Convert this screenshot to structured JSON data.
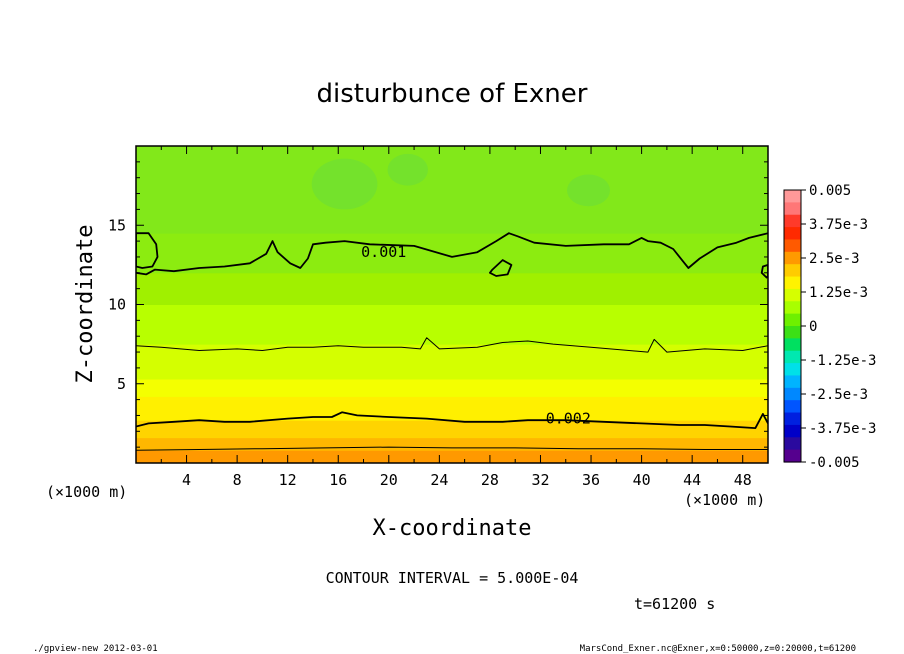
{
  "chart_data": {
    "type": "contour",
    "title": "disturbunce of Exner",
    "xlabel": "X-coordinate",
    "ylabel": "Z-coordinate",
    "x_unit": "(×1000 m)",
    "z_unit": "(×1000 m)",
    "xlim": [
      0,
      50
    ],
    "ylim": [
      0,
      20
    ],
    "x_ticks": [
      "4",
      "8",
      "12",
      "16",
      "20",
      "24",
      "28",
      "32",
      "36",
      "40",
      "44",
      "48"
    ],
    "y_ticks": [
      "5",
      "10",
      "15"
    ],
    "contour_interval_text": "CONTOUR INTERVAL = 5.000E-04",
    "time_text": "t=61200 s",
    "footer_left": "./gpview-new  2012-03-01",
    "footer_right": "MarsCond_Exner.nc@Exner,x=0:50000,z=0:20000,t=61200",
    "colorbar": {
      "labels": [
        "0.005",
        "3.75e-3",
        "2.5e-3",
        "1.25e-3",
        "0",
        "-1.25e-3",
        "-2.5e-3",
        "-3.75e-3",
        "-0.005"
      ],
      "colors": [
        "#ff9999",
        "#ff7777",
        "#ff3a2a",
        "#ff2a00",
        "#ff5a00",
        "#ff9a00",
        "#ffcc00",
        "#fff300",
        "#d6ff00",
        "#a8ff00",
        "#6ef000",
        "#3ce016",
        "#00e060",
        "#00e8b0",
        "#00e0e8",
        "#00b4ff",
        "#0088ff",
        "#0055ff",
        "#0020e0",
        "#0000c8",
        "#2a0a9e",
        "#55008e"
      ]
    },
    "bands": [
      {
        "z": [
          0,
          0.8
        ],
        "value": 0.0025,
        "color": "#ff9900"
      },
      {
        "z": [
          0.8,
          1.6
        ],
        "value": 0.00225,
        "color": "#ffb700"
      },
      {
        "z": [
          1.6,
          2.7
        ],
        "value": 0.002,
        "color": "#ffd400"
      },
      {
        "z": [
          2.7,
          4.2
        ],
        "value": 0.00175,
        "color": "#fff000"
      },
      {
        "z": [
          4.2,
          5.3
        ],
        "value": 0.0015,
        "color": "#f4ff00"
      },
      {
        "z": [
          5.3,
          7.5
        ],
        "value": 0.00138,
        "color": "#d4ff00"
      },
      {
        "z": [
          7.5,
          10.0
        ],
        "value": 0.00125,
        "color": "#b8ff00"
      },
      {
        "z": [
          10.0,
          12.0
        ],
        "value": 0.0011,
        "color": "#a0f000"
      },
      {
        "z": [
          12.0,
          14.5
        ],
        "value": 0.001,
        "color": "#8cec10"
      },
      {
        "z": [
          14.5,
          20.0
        ],
        "value": 0.0009,
        "color": "#82e81a"
      }
    ],
    "cells": [
      {
        "x": 16.5,
        "z": 17.6,
        "rx": 2.6,
        "rz": 1.6
      },
      {
        "x": 21.5,
        "z": 18.5,
        "rx": 1.6,
        "rz": 1.0
      },
      {
        "x": 35.8,
        "z": 17.2,
        "rx": 1.7,
        "rz": 1.0
      }
    ],
    "contours": [
      {
        "label": "0.001",
        "label_x": 19.6,
        "label_z": 13.3,
        "weight": "bold",
        "x": [
          0,
          0.8,
          1.5,
          3,
          5,
          7,
          9,
          10.3,
          10.8,
          11.2,
          12.2,
          13.0,
          13.6,
          14,
          15,
          16.5,
          18.5,
          22,
          25,
          27,
          28.5,
          29.5,
          30.2,
          31.5,
          34,
          37,
          39,
          40,
          40.5,
          41.5,
          42.5,
          43.3,
          43.7,
          44.6,
          46,
          47.5,
          48.5,
          50
        ],
        "z": [
          12.0,
          11.9,
          12.2,
          12.1,
          12.3,
          12.4,
          12.6,
          13.2,
          14.0,
          13.3,
          12.6,
          12.3,
          12.9,
          13.8,
          13.9,
          14.0,
          13.8,
          13.7,
          13.0,
          13.3,
          14.0,
          14.5,
          14.3,
          13.9,
          13.7,
          13.8,
          13.8,
          14.2,
          14.0,
          13.9,
          13.5,
          12.7,
          12.3,
          12.9,
          13.6,
          13.9,
          14.2,
          14.5
        ]
      },
      {
        "label": "",
        "weight": "bold",
        "closed": true,
        "x": [
          0,
          1.0,
          1.6,
          1.7,
          1.3,
          0.5,
          0
        ],
        "z": [
          14.5,
          14.5,
          13.8,
          13.0,
          12.4,
          12.3,
          12.4
        ]
      },
      {
        "label": "",
        "weight": "bold",
        "closed": true,
        "x": [
          28.2,
          29.0,
          29.7,
          29.4,
          28.5,
          28.0,
          28.2
        ],
        "z": [
          12.2,
          12.8,
          12.5,
          11.9,
          11.8,
          12.0,
          12.2
        ]
      },
      {
        "label": "",
        "weight": "bold",
        "closed": true,
        "x": [
          50,
          49.6,
          49.5,
          49.9,
          50
        ],
        "z": [
          12.5,
          12.4,
          12.0,
          11.7,
          11.8
        ]
      },
      {
        "label": "",
        "weight": "thin",
        "x": [
          0,
          2,
          5,
          8,
          10,
          12,
          14,
          16,
          18,
          21,
          22.5,
          23,
          24,
          27,
          29,
          31,
          33,
          36,
          39,
          40.5,
          41,
          42,
          45,
          48,
          50
        ],
        "z": [
          7.4,
          7.3,
          7.1,
          7.2,
          7.1,
          7.3,
          7.3,
          7.4,
          7.3,
          7.3,
          7.2,
          7.9,
          7.2,
          7.3,
          7.6,
          7.7,
          7.5,
          7.3,
          7.1,
          7.0,
          7.8,
          7.0,
          7.2,
          7.1,
          7.4
        ]
      },
      {
        "label": "0.002",
        "label_x": 34.2,
        "label_z": 2.8,
        "weight": "bold",
        "x": [
          0,
          1,
          3,
          5,
          7,
          9,
          12,
          14,
          15.5,
          16.3,
          17.5,
          20,
          23,
          26,
          29,
          31,
          34,
          37,
          40,
          43,
          45,
          47,
          49,
          49.6,
          50
        ],
        "z": [
          2.3,
          2.5,
          2.6,
          2.7,
          2.6,
          2.6,
          2.8,
          2.9,
          2.9,
          3.2,
          3.0,
          2.9,
          2.8,
          2.6,
          2.6,
          2.7,
          2.7,
          2.6,
          2.5,
          2.4,
          2.4,
          2.3,
          2.2,
          3.1,
          2.5
        ]
      },
      {
        "label": "",
        "weight": "thin",
        "x": [
          0,
          5,
          10,
          15,
          20,
          25,
          30,
          35,
          40,
          45,
          50
        ],
        "z": [
          0.8,
          0.85,
          0.9,
          0.95,
          1.0,
          0.95,
          0.95,
          0.9,
          0.9,
          0.85,
          0.85
        ]
      }
    ]
  }
}
